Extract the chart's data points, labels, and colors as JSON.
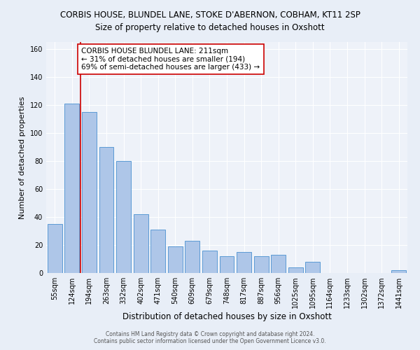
{
  "title": "CORBIS HOUSE, BLUNDEL LANE, STOKE D'ABERNON, COBHAM, KT11 2SP",
  "subtitle": "Size of property relative to detached houses in Oxshott",
  "xlabel": "Distribution of detached houses by size in Oxshott",
  "ylabel": "Number of detached properties",
  "categories": [
    "55sqm",
    "124sqm",
    "194sqm",
    "263sqm",
    "332sqm",
    "402sqm",
    "471sqm",
    "540sqm",
    "609sqm",
    "679sqm",
    "748sqm",
    "817sqm",
    "887sqm",
    "956sqm",
    "1025sqm",
    "1095sqm",
    "1164sqm",
    "1233sqm",
    "1302sqm",
    "1372sqm",
    "1441sqm"
  ],
  "values": [
    35,
    121,
    115,
    90,
    80,
    42,
    31,
    19,
    23,
    16,
    12,
    15,
    12,
    13,
    4,
    8,
    0,
    0,
    0,
    0,
    2
  ],
  "bar_color": "#aec6e8",
  "bar_edge_color": "#5b9bd5",
  "annotation_text": "CORBIS HOUSE BLUNDEL LANE: 211sqm\n← 31% of detached houses are smaller (194)\n69% of semi-detached houses are larger (433) →",
  "annotation_box_color": "#ffffff",
  "annotation_box_edge_color": "#cc0000",
  "vline_color": "#cc0000",
  "ylim": [
    0,
    165
  ],
  "yticks": [
    0,
    20,
    40,
    60,
    80,
    100,
    120,
    140,
    160
  ],
  "footer1": "Contains HM Land Registry data © Crown copyright and database right 2024.",
  "footer2": "Contains public sector information licensed under the Open Government Licence v3.0.",
  "bg_color": "#e8eef7",
  "plot_bg_color": "#eef2f9",
  "title_fontsize": 8.5,
  "ylabel_fontsize": 8,
  "xlabel_fontsize": 8.5,
  "tick_fontsize": 7,
  "annotation_fontsize": 7.5
}
